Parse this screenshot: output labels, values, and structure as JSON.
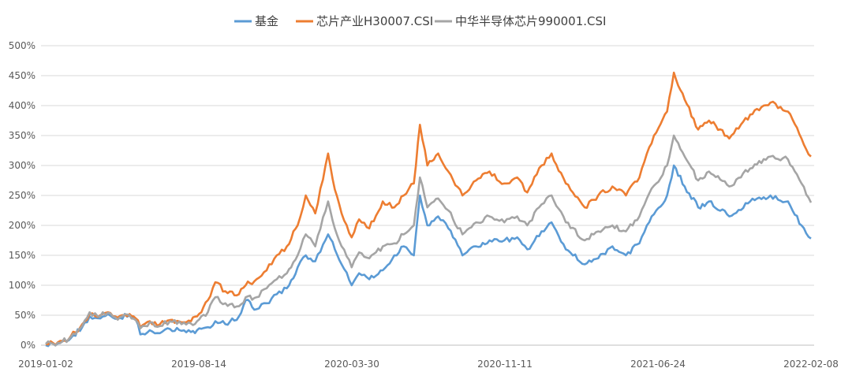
{
  "chart_data": {
    "type": "line",
    "title": "",
    "xlabel": "",
    "ylabel": "",
    "legend_position": "top",
    "grid": true,
    "y_tick_format": "percent",
    "ylim": [
      0,
      500
    ],
    "y_ticks": [
      0,
      50,
      100,
      150,
      200,
      250,
      300,
      350,
      400,
      450,
      500
    ],
    "y_tick_labels": [
      "0%",
      "50%",
      "100%",
      "150%",
      "200%",
      "250%",
      "300%",
      "350%",
      "400%",
      "450%",
      "500%"
    ],
    "x_ticks": [
      "2019-01-02",
      "2019-08-14",
      "2020-03-30",
      "2020-11-11",
      "2021-06-24",
      "2022-02-08"
    ],
    "x_range": [
      "2019-01-02",
      "2022-02-08"
    ],
    "series": [
      {
        "name": "基金",
        "color": "#5B9BD5",
        "points": [
          [
            "2019-01-02",
            0
          ],
          [
            "2019-01-20",
            3
          ],
          [
            "2019-02-05",
            8
          ],
          [
            "2019-02-25",
            30
          ],
          [
            "2019-03-08",
            48
          ],
          [
            "2019-03-20",
            45
          ],
          [
            "2019-04-04",
            52
          ],
          [
            "2019-04-15",
            44
          ],
          [
            "2019-05-06",
            50
          ],
          [
            "2019-05-15",
            43
          ],
          [
            "2019-05-22",
            18
          ],
          [
            "2019-06-05",
            25
          ],
          [
            "2019-06-20",
            20
          ],
          [
            "2019-07-05",
            27
          ],
          [
            "2019-07-22",
            24
          ],
          [
            "2019-08-05",
            22
          ],
          [
            "2019-08-14",
            25
          ],
          [
            "2019-08-30",
            30
          ],
          [
            "2019-09-10",
            40
          ],
          [
            "2019-09-25",
            35
          ],
          [
            "2019-10-15",
            48
          ],
          [
            "2019-10-25",
            75
          ],
          [
            "2019-11-10",
            60
          ],
          [
            "2019-11-25",
            70
          ],
          [
            "2019-12-10",
            85
          ],
          [
            "2019-12-25",
            95
          ],
          [
            "2020-01-10",
            130
          ],
          [
            "2020-01-22",
            150
          ],
          [
            "2020-02-05",
            140
          ],
          [
            "2020-02-24",
            185
          ],
          [
            "2020-03-05",
            160
          ],
          [
            "2020-03-15",
            135
          ],
          [
            "2020-03-30",
            100
          ],
          [
            "2020-04-10",
            120
          ],
          [
            "2020-04-25",
            110
          ],
          [
            "2020-05-15",
            125
          ],
          [
            "2020-06-01",
            150
          ],
          [
            "2020-06-15",
            165
          ],
          [
            "2020-06-30",
            150
          ],
          [
            "2020-07-09",
            250
          ],
          [
            "2020-07-20",
            200
          ],
          [
            "2020-08-05",
            215
          ],
          [
            "2020-08-20",
            195
          ],
          [
            "2020-09-10",
            150
          ],
          [
            "2020-09-30",
            165
          ],
          [
            "2020-10-20",
            175
          ],
          [
            "2020-11-11",
            175
          ],
          [
            "2020-11-30",
            180
          ],
          [
            "2020-12-15",
            160
          ],
          [
            "2021-01-05",
            190
          ],
          [
            "2021-01-20",
            205
          ],
          [
            "2021-02-10",
            160
          ],
          [
            "2021-03-10",
            135
          ],
          [
            "2021-03-30",
            145
          ],
          [
            "2021-04-20",
            165
          ],
          [
            "2021-05-10",
            150
          ],
          [
            "2021-05-30",
            170
          ],
          [
            "2021-06-10",
            200
          ],
          [
            "2021-06-24",
            225
          ],
          [
            "2021-07-10",
            250
          ],
          [
            "2021-07-20",
            300
          ],
          [
            "2021-08-05",
            265
          ],
          [
            "2021-08-25",
            230
          ],
          [
            "2021-09-10",
            240
          ],
          [
            "2021-10-10",
            215
          ],
          [
            "2021-11-10",
            240
          ],
          [
            "2021-12-10",
            250
          ],
          [
            "2022-01-05",
            240
          ],
          [
            "2022-01-25",
            200
          ],
          [
            "2022-02-08",
            178
          ]
        ]
      },
      {
        "name": "芯片产业H30007.CSI",
        "color": "#ED7D31",
        "points": [
          [
            "2019-01-02",
            2
          ],
          [
            "2019-01-20",
            5
          ],
          [
            "2019-02-05",
            10
          ],
          [
            "2019-02-25",
            35
          ],
          [
            "2019-03-08",
            52
          ],
          [
            "2019-03-20",
            47
          ],
          [
            "2019-04-04",
            55
          ],
          [
            "2019-04-15",
            48
          ],
          [
            "2019-05-06",
            52
          ],
          [
            "2019-05-15",
            45
          ],
          [
            "2019-05-22",
            30
          ],
          [
            "2019-06-05",
            40
          ],
          [
            "2019-06-20",
            35
          ],
          [
            "2019-07-05",
            42
          ],
          [
            "2019-07-22",
            38
          ],
          [
            "2019-08-05",
            40
          ],
          [
            "2019-08-14",
            48
          ],
          [
            "2019-08-30",
            75
          ],
          [
            "2019-09-10",
            105
          ],
          [
            "2019-09-25",
            90
          ],
          [
            "2019-10-15",
            85
          ],
          [
            "2019-10-25",
            100
          ],
          [
            "2019-11-10",
            110
          ],
          [
            "2019-11-25",
            125
          ],
          [
            "2019-12-10",
            150
          ],
          [
            "2019-12-25",
            165
          ],
          [
            "2020-01-10",
            200
          ],
          [
            "2020-01-22",
            250
          ],
          [
            "2020-02-05",
            220
          ],
          [
            "2020-02-24",
            320
          ],
          [
            "2020-03-05",
            260
          ],
          [
            "2020-03-15",
            220
          ],
          [
            "2020-03-30",
            180
          ],
          [
            "2020-04-10",
            210
          ],
          [
            "2020-04-25",
            195
          ],
          [
            "2020-05-15",
            240
          ],
          [
            "2020-06-01",
            230
          ],
          [
            "2020-06-15",
            250
          ],
          [
            "2020-06-30",
            270
          ],
          [
            "2020-07-09",
            368
          ],
          [
            "2020-07-20",
            300
          ],
          [
            "2020-08-05",
            320
          ],
          [
            "2020-08-20",
            290
          ],
          [
            "2020-09-10",
            250
          ],
          [
            "2020-09-30",
            275
          ],
          [
            "2020-10-20",
            290
          ],
          [
            "2020-11-11",
            270
          ],
          [
            "2020-11-30",
            280
          ],
          [
            "2020-12-15",
            255
          ],
          [
            "2021-01-05",
            300
          ],
          [
            "2021-01-20",
            320
          ],
          [
            "2021-02-10",
            270
          ],
          [
            "2021-03-10",
            230
          ],
          [
            "2021-03-30",
            250
          ],
          [
            "2021-04-20",
            265
          ],
          [
            "2021-05-10",
            250
          ],
          [
            "2021-05-30",
            280
          ],
          [
            "2021-06-10",
            320
          ],
          [
            "2021-06-24",
            355
          ],
          [
            "2021-07-10",
            390
          ],
          [
            "2021-07-20",
            455
          ],
          [
            "2021-08-05",
            410
          ],
          [
            "2021-08-25",
            360
          ],
          [
            "2021-09-10",
            375
          ],
          [
            "2021-10-10",
            345
          ],
          [
            "2021-11-10",
            385
          ],
          [
            "2021-12-10",
            405
          ],
          [
            "2022-01-05",
            390
          ],
          [
            "2022-01-25",
            345
          ],
          [
            "2022-02-08",
            315
          ]
        ]
      },
      {
        "name": "中华半导体芯片990001.CSI",
        "color": "#A5A5A5",
        "points": [
          [
            "2019-01-02",
            2
          ],
          [
            "2019-01-20",
            4
          ],
          [
            "2019-02-05",
            10
          ],
          [
            "2019-02-25",
            32
          ],
          [
            "2019-03-08",
            55
          ],
          [
            "2019-03-20",
            48
          ],
          [
            "2019-04-04",
            54
          ],
          [
            "2019-04-15",
            46
          ],
          [
            "2019-05-06",
            50
          ],
          [
            "2019-05-15",
            42
          ],
          [
            "2019-05-22",
            28
          ],
          [
            "2019-06-05",
            38
          ],
          [
            "2019-06-20",
            32
          ],
          [
            "2019-07-05",
            40
          ],
          [
            "2019-07-22",
            35
          ],
          [
            "2019-08-05",
            36
          ],
          [
            "2019-08-14",
            40
          ],
          [
            "2019-08-30",
            55
          ],
          [
            "2019-09-10",
            80
          ],
          [
            "2019-09-25",
            70
          ],
          [
            "2019-10-15",
            65
          ],
          [
            "2019-10-25",
            80
          ],
          [
            "2019-11-10",
            80
          ],
          [
            "2019-11-25",
            95
          ],
          [
            "2019-12-10",
            110
          ],
          [
            "2019-12-25",
            120
          ],
          [
            "2020-01-10",
            150
          ],
          [
            "2020-01-22",
            185
          ],
          [
            "2020-02-05",
            165
          ],
          [
            "2020-02-24",
            240
          ],
          [
            "2020-03-05",
            195
          ],
          [
            "2020-03-15",
            165
          ],
          [
            "2020-03-30",
            130
          ],
          [
            "2020-04-10",
            155
          ],
          [
            "2020-04-25",
            145
          ],
          [
            "2020-05-15",
            165
          ],
          [
            "2020-06-01",
            170
          ],
          [
            "2020-06-15",
            185
          ],
          [
            "2020-06-30",
            200
          ],
          [
            "2020-07-09",
            280
          ],
          [
            "2020-07-20",
            230
          ],
          [
            "2020-08-05",
            245
          ],
          [
            "2020-08-20",
            225
          ],
          [
            "2020-09-10",
            185
          ],
          [
            "2020-09-30",
            205
          ],
          [
            "2020-10-20",
            215
          ],
          [
            "2020-11-11",
            205
          ],
          [
            "2020-11-30",
            215
          ],
          [
            "2020-12-15",
            200
          ],
          [
            "2021-01-05",
            235
          ],
          [
            "2021-01-20",
            250
          ],
          [
            "2021-02-10",
            205
          ],
          [
            "2021-03-10",
            175
          ],
          [
            "2021-03-30",
            190
          ],
          [
            "2021-04-20",
            200
          ],
          [
            "2021-05-10",
            190
          ],
          [
            "2021-05-30",
            215
          ],
          [
            "2021-06-10",
            245
          ],
          [
            "2021-06-24",
            270
          ],
          [
            "2021-07-10",
            300
          ],
          [
            "2021-07-20",
            350
          ],
          [
            "2021-08-05",
            315
          ],
          [
            "2021-08-25",
            275
          ],
          [
            "2021-09-10",
            290
          ],
          [
            "2021-10-10",
            265
          ],
          [
            "2021-11-10",
            295
          ],
          [
            "2021-12-10",
            315
          ],
          [
            "2022-01-05",
            310
          ],
          [
            "2022-01-25",
            270
          ],
          [
            "2022-02-08",
            238
          ]
        ]
      }
    ]
  }
}
